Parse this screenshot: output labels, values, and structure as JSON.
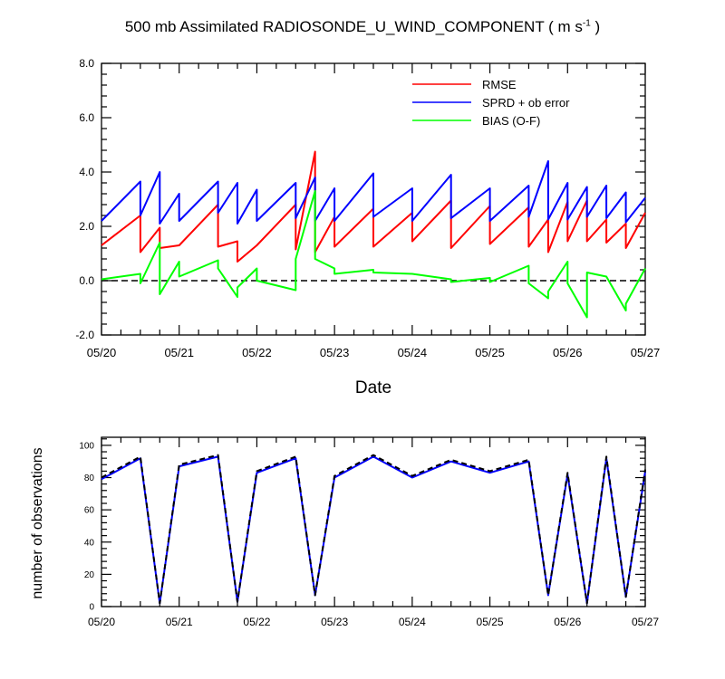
{
  "title_main": "500 mb Assimilated RADIOSONDE_U_WIND_COMPONENT ( m s",
  "title_sup": "-1",
  "title_end": " )",
  "colors": {
    "rmse": "#ff0000",
    "sprd": "#0000ff",
    "bias": "#00ff00",
    "zero_line": "#000000",
    "obs": "#0000ff",
    "obs_dash": "#000000"
  },
  "chart_data": [
    {
      "type": "line",
      "title": "500 mb Assimilated RADIOSONDE_U_WIND_COMPONENT ( m s-1 )",
      "xlabel": "Date",
      "ylabel": "",
      "xlim": [
        0,
        7
      ],
      "ylim": [
        -2,
        8
      ],
      "yticks": [
        -2.0,
        0.0,
        2.0,
        4.0,
        6.0,
        8.0
      ],
      "ytick_labels": [
        "-2.0",
        "0.0",
        "2.0",
        "4.0",
        "6.0",
        "8.0"
      ],
      "xtick_labels": [
        "05/20",
        "05/21",
        "05/22",
        "05/23",
        "05/24",
        "05/25",
        "05/26",
        "05/27"
      ],
      "legend": {
        "placement": "top-right",
        "entries": [
          "RMSE",
          "SPRD + ob error",
          "BIAS (O-F)"
        ]
      },
      "reference_line": 0,
      "series": [
        {
          "name": "RMSE",
          "color_key": "rmse",
          "x": [
            0,
            0.5,
            0.5,
            0.75,
            0.75,
            1.0,
            1.5,
            1.5,
            1.75,
            1.75,
            2.0,
            2.5,
            2.5,
            2.75,
            2.75,
            3.0,
            3.0,
            3.5,
            3.5,
            4.0,
            4.0,
            4.5,
            4.5,
            5.0,
            5.0,
            5.5,
            5.5,
            5.75,
            5.75,
            6.0,
            6.0,
            6.25,
            6.25,
            6.5,
            6.5,
            6.75,
            6.75,
            7.0
          ],
          "y": [
            1.3,
            2.4,
            1.05,
            1.95,
            1.2,
            1.3,
            2.8,
            1.25,
            1.45,
            0.7,
            1.3,
            2.8,
            1.15,
            4.75,
            1.05,
            2.35,
            1.25,
            2.65,
            1.25,
            2.5,
            1.45,
            2.95,
            1.2,
            2.75,
            1.35,
            2.7,
            1.25,
            2.25,
            1.05,
            2.9,
            1.45,
            2.95,
            1.45,
            2.25,
            1.4,
            2.1,
            1.2,
            2.5
          ]
        },
        {
          "name": "SPRD + ob error",
          "color_key": "sprd",
          "x": [
            0,
            0.5,
            0.5,
            0.75,
            0.75,
            1.0,
            1.0,
            1.5,
            1.5,
            1.75,
            1.75,
            2.0,
            2.0,
            2.5,
            2.5,
            2.75,
            2.75,
            3.0,
            3.0,
            3.5,
            3.5,
            4.0,
            4.0,
            4.5,
            4.5,
            5.0,
            5.0,
            5.5,
            5.5,
            5.75,
            5.75,
            6.0,
            6.0,
            6.25,
            6.25,
            6.5,
            6.5,
            6.75,
            6.75,
            7.0
          ],
          "y": [
            2.2,
            3.65,
            2.4,
            4.0,
            2.1,
            3.2,
            2.2,
            3.65,
            2.5,
            3.6,
            2.1,
            3.35,
            2.2,
            3.6,
            2.3,
            3.8,
            2.2,
            3.4,
            2.2,
            3.95,
            2.35,
            3.4,
            2.2,
            3.9,
            2.3,
            3.4,
            2.2,
            3.5,
            2.35,
            4.4,
            2.25,
            3.6,
            2.25,
            3.45,
            2.35,
            3.5,
            2.3,
            3.25,
            2.15,
            3.05
          ]
        },
        {
          "name": "BIAS (O-F)",
          "color_key": "bias",
          "x": [
            0,
            0.5,
            0.5,
            0.75,
            0.75,
            1.0,
            1.0,
            1.5,
            1.5,
            1.75,
            1.75,
            2.0,
            2.0,
            2.5,
            2.5,
            2.75,
            2.75,
            3.0,
            3.0,
            3.5,
            3.5,
            4.0,
            4.0,
            4.5,
            4.5,
            5.0,
            5.0,
            5.5,
            5.5,
            5.75,
            5.75,
            6.0,
            6.0,
            6.25,
            6.25,
            6.5,
            6.5,
            6.75,
            6.75,
            7.0
          ],
          "y": [
            0.05,
            0.25,
            -0.1,
            1.4,
            -0.5,
            0.7,
            0.15,
            0.75,
            0.45,
            -0.6,
            -0.25,
            0.45,
            0.0,
            -0.35,
            0.8,
            3.3,
            0.8,
            0.45,
            0.25,
            0.4,
            0.3,
            0.25,
            0.25,
            0.05,
            -0.05,
            0.1,
            -0.05,
            0.55,
            -0.1,
            -0.65,
            -0.4,
            0.7,
            -0.1,
            -1.35,
            0.3,
            0.15,
            0.15,
            -1.1,
            -0.85,
            0.45
          ]
        }
      ]
    },
    {
      "type": "line",
      "title": "",
      "xlabel": "",
      "ylabel": "number of observations",
      "xlim": [
        0,
        7
      ],
      "ylim": [
        0,
        105
      ],
      "yticks": [
        0,
        20,
        40,
        60,
        80,
        100
      ],
      "ytick_labels": [
        "0",
        "20",
        "40",
        "60",
        "80",
        "100"
      ],
      "xtick_labels": [
        "05/20",
        "05/21",
        "05/22",
        "05/23",
        "05/24",
        "05/25",
        "05/26",
        "05/27"
      ],
      "series": [
        {
          "style": "solid",
          "color_key": "obs",
          "x": [
            0,
            0.5,
            0.75,
            1.0,
            1.5,
            1.75,
            2.0,
            2.5,
            2.75,
            3.0,
            3.5,
            4.0,
            4.5,
            5.0,
            5.5,
            5.75,
            6.0,
            6.25,
            6.5,
            6.75,
            7.0
          ],
          "y": [
            79,
            92,
            2,
            87,
            93,
            3,
            83,
            92,
            7,
            80,
            93,
            80,
            90,
            83,
            90,
            7,
            82,
            2,
            92,
            6,
            84
          ]
        },
        {
          "style": "dashed",
          "color_key": "obs_dash",
          "x": [
            0,
            0.5,
            0.75,
            1.0,
            1.5,
            1.75,
            2.0,
            2.5,
            2.75,
            3.0,
            3.5,
            4.0,
            4.5,
            5.0,
            5.5,
            5.75,
            6.0,
            6.25,
            6.5,
            6.75,
            7.0
          ],
          "y": [
            80,
            93,
            2,
            88,
            94,
            3,
            84,
            93,
            7,
            81,
            94,
            81,
            91,
            84,
            91,
            7,
            83,
            2,
            93,
            6,
            85
          ]
        }
      ]
    }
  ]
}
